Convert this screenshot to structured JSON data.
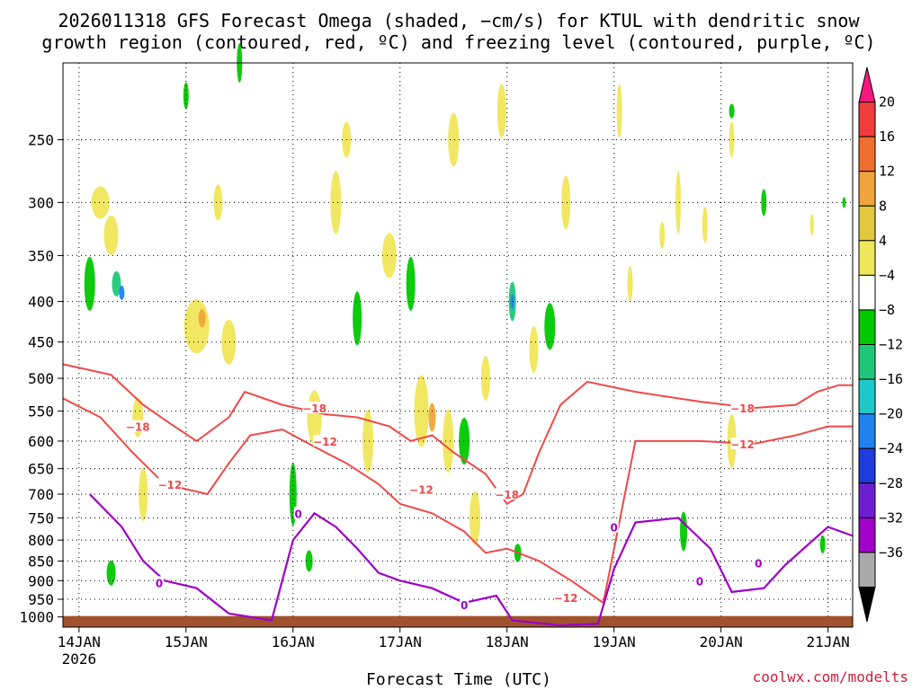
{
  "chart_data": {
    "type": "heatmap",
    "title": "2026011318 GFS Forecast Omega (shaded, −cm/s) for KTUL with dendritic snow",
    "subtitle": "growth region (contoured, red, ºC) and freezing level (contoured, purple, ºC)",
    "xlabel": "Forecast Time (UTC)",
    "ylabel": "",
    "credit": "coolwx.com/modelts",
    "x_ticks": [
      "14JAN",
      "15JAN",
      "16JAN",
      "17JAN",
      "18JAN",
      "19JAN",
      "20JAN",
      "21JAN"
    ],
    "x_first_year": "2026",
    "x_range_days": [
      13.85,
      21.23
    ],
    "y_ticks": [
      250,
      300,
      350,
      400,
      450,
      500,
      550,
      600,
      650,
      700,
      750,
      800,
      850,
      900,
      950,
      1000
    ],
    "y_range_hpa": [
      1030,
      200
    ],
    "colorbar": {
      "labels": [
        "20",
        "16",
        "12",
        "8",
        "4",
        "−4",
        "−8",
        "−12",
        "−16",
        "−20",
        "−24",
        "−28",
        "−32",
        "−36"
      ],
      "colors": [
        "#f5197f",
        "#f03c3c",
        "#f06e2d",
        "#f0a53c",
        "#e1c83c",
        "#f0e65a",
        "#ffffff",
        "#00c800",
        "#1ec878",
        "#1ec8c8",
        "#1e82f0",
        "#1e3cdc",
        "#6e1ed2",
        "#a000c8",
        "#aaaaaa",
        "#000000"
      ]
    },
    "contours": {
      "dgz_labels": [
        "−18",
        "−12"
      ],
      "freezing_label": "0",
      "dgz_minus18_hpa": [
        [
          13.85,
          480
        ],
        [
          14.3,
          495
        ],
        [
          14.6,
          540
        ],
        [
          14.85,
          570
        ],
        [
          15.1,
          600
        ],
        [
          15.4,
          560
        ],
        [
          15.55,
          520
        ],
        [
          15.9,
          540
        ],
        [
          16.3,
          555
        ],
        [
          16.6,
          560
        ],
        [
          16.9,
          575
        ],
        [
          17.1,
          600
        ],
        [
          17.3,
          590
        ],
        [
          17.5,
          620
        ],
        [
          17.8,
          660
        ],
        [
          18.0,
          720
        ],
        [
          18.15,
          700
        ],
        [
          18.3,
          620
        ],
        [
          18.5,
          540
        ],
        [
          18.75,
          505
        ],
        [
          19.2,
          520
        ],
        [
          19.8,
          535
        ],
        [
          20.3,
          545
        ],
        [
          20.7,
          540
        ],
        [
          20.9,
          520
        ],
        [
          21.1,
          510
        ],
        [
          21.23,
          510
        ]
      ],
      "dgz_minus12_hpa": [
        [
          13.85,
          530
        ],
        [
          14.2,
          560
        ],
        [
          14.5,
          620
        ],
        [
          14.8,
          680
        ],
        [
          15.2,
          700
        ],
        [
          15.4,
          640
        ],
        [
          15.6,
          590
        ],
        [
          15.9,
          580
        ],
        [
          16.2,
          610
        ],
        [
          16.5,
          640
        ],
        [
          16.8,
          680
        ],
        [
          17.0,
          720
        ],
        [
          17.3,
          740
        ],
        [
          17.6,
          780
        ],
        [
          17.8,
          830
        ],
        [
          18.0,
          820
        ],
        [
          18.3,
          850
        ],
        [
          18.6,
          900
        ],
        [
          18.9,
          960
        ],
        [
          19.2,
          600
        ],
        [
          19.8,
          600
        ],
        [
          20.3,
          605
        ],
        [
          20.7,
          590
        ],
        [
          21.0,
          575
        ],
        [
          21.23,
          575
        ]
      ],
      "freezing_hpa": [
        [
          14.1,
          700
        ],
        [
          14.4,
          770
        ],
        [
          14.6,
          850
        ],
        [
          14.8,
          900
        ],
        [
          15.1,
          920
        ],
        [
          15.4,
          990
        ],
        [
          15.8,
          1010
        ],
        [
          16.0,
          800
        ],
        [
          16.2,
          740
        ],
        [
          16.4,
          770
        ],
        [
          16.6,
          820
        ],
        [
          16.8,
          880
        ],
        [
          17.0,
          900
        ],
        [
          17.3,
          920
        ],
        [
          17.6,
          960
        ],
        [
          17.9,
          940
        ],
        [
          18.05,
          1010
        ],
        [
          18.5,
          1025
        ],
        [
          18.85,
          1020
        ],
        [
          19.0,
          870
        ],
        [
          19.2,
          760
        ],
        [
          19.6,
          750
        ],
        [
          19.9,
          820
        ],
        [
          20.1,
          930
        ],
        [
          20.4,
          920
        ],
        [
          20.6,
          860
        ],
        [
          21.0,
          770
        ],
        [
          21.23,
          790
        ]
      ]
    }
  }
}
